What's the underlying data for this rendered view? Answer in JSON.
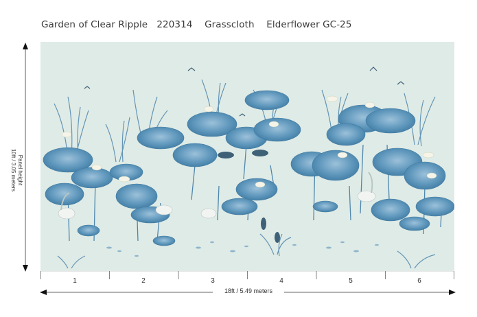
{
  "header": {
    "title": "Garden of Clear Ripple   220314    Grasscloth    Elderflower GC-25"
  },
  "dimensions": {
    "height_label_line1": "Panel height",
    "height_label_line2": "10ft / 3.05 meters",
    "width_label": "18ft / 5.49 meters"
  },
  "panels": [
    "1",
    "2",
    "3",
    "4",
    "5",
    "6"
  ],
  "colors": {
    "background": "#dfebe6",
    "lotus_leaf": "#5c93b8",
    "lotus_leaf_light": "#8fb7d2",
    "accent_dark": "#2f5f7e"
  }
}
